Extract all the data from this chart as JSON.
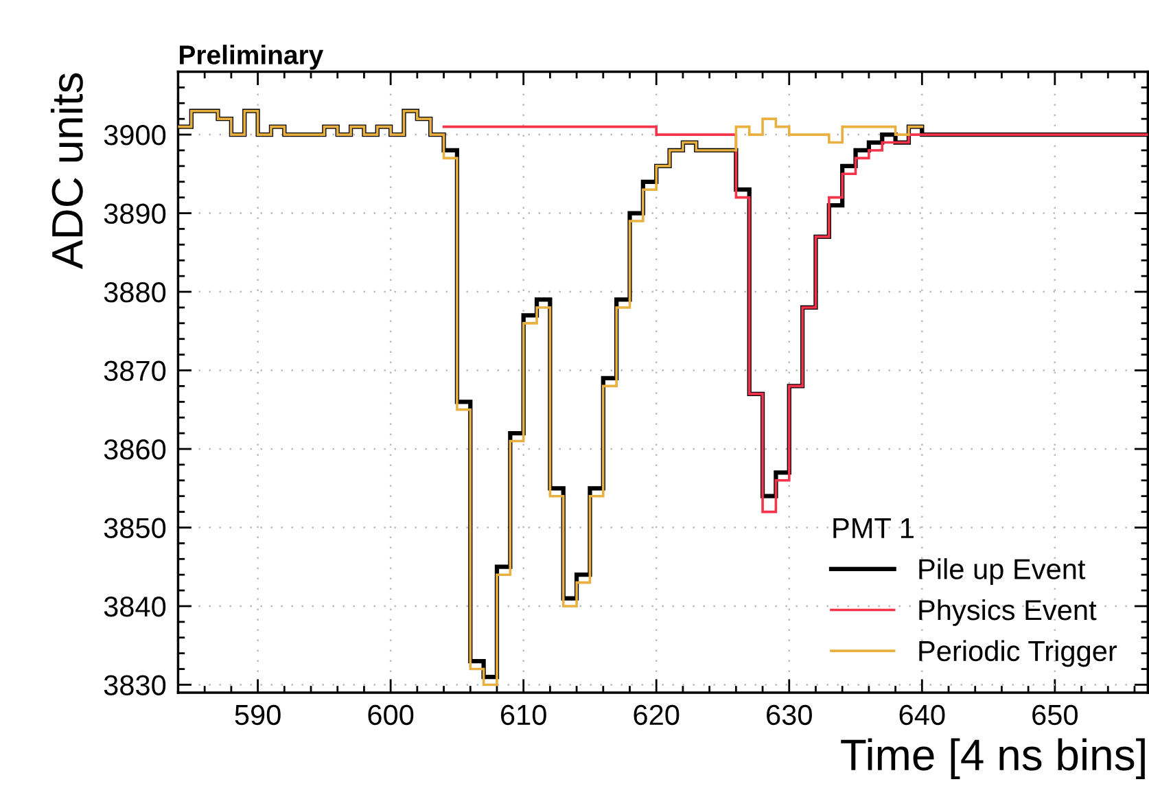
{
  "chart_data": {
    "type": "step",
    "title": "Preliminary",
    "xlabel": "Time [4 ns bins]",
    "ylabel": "ADC units",
    "legend_title": "PMT 1",
    "xlim": [
      584,
      657
    ],
    "ylim": [
      3829,
      3908
    ],
    "xticks": [
      590,
      600,
      610,
      620,
      630,
      640,
      650
    ],
    "yticks": [
      3830,
      3840,
      3850,
      3860,
      3870,
      3880,
      3890,
      3900
    ],
    "grid": true,
    "legend": "bottom right",
    "line_style": "solid",
    "marker": "none",
    "series": [
      {
        "name": "Pile up Event",
        "color": "#000000",
        "x": [
          584,
          585,
          586,
          587,
          588,
          589,
          590,
          591,
          592,
          593,
          594,
          595,
          596,
          597,
          598,
          599,
          600,
          601,
          602,
          603,
          604,
          605,
          606,
          607,
          608,
          609,
          610,
          611,
          612,
          613,
          614,
          615,
          616,
          617,
          618,
          619,
          620,
          621,
          622,
          623,
          624,
          625,
          626,
          627,
          628,
          629,
          630,
          631,
          632,
          633,
          634,
          635,
          636,
          637,
          638,
          639,
          640,
          641,
          642,
          643,
          644,
          645,
          646,
          647,
          648,
          649,
          650,
          651,
          652,
          653,
          654,
          655,
          656,
          657
        ],
        "values": [
          3901,
          3903,
          3903,
          3902,
          3900,
          3903,
          3900,
          3901,
          3900,
          3900,
          3900,
          3901,
          3900,
          3901,
          3900,
          3901,
          3900,
          3903,
          3902,
          3900,
          3898,
          3866,
          3833,
          3831,
          3845,
          3862,
          3877,
          3879,
          3855,
          3841,
          3844,
          3855,
          3869,
          3879,
          3890,
          3894,
          3896,
          3898,
          3899,
          3898,
          3898,
          3898,
          3893,
          3867,
          3854,
          3857,
          3868,
          3878,
          3887,
          3891,
          3896,
          3898,
          3899,
          3900,
          3899,
          3901,
          3900,
          3900,
          3900,
          3900,
          3900,
          3900,
          3900,
          3900,
          3900,
          3900,
          3900,
          3900,
          3900,
          3900,
          3900,
          3900,
          3900,
          3900
        ]
      },
      {
        "name": "Physics Event",
        "color": "#f5334a",
        "x": [
          604,
          605,
          606,
          607,
          608,
          609,
          610,
          611,
          612,
          613,
          614,
          615,
          616,
          617,
          618,
          619,
          620,
          621,
          622,
          623,
          624,
          625,
          626,
          627,
          628,
          629,
          630,
          631,
          632,
          633,
          634,
          635,
          636,
          637,
          638,
          639,
          640,
          641,
          642,
          643,
          644,
          645,
          646,
          647,
          648,
          649,
          650,
          651,
          652,
          653,
          654,
          655,
          656,
          657
        ],
        "values": [
          3901,
          3901,
          3901,
          3901,
          3901,
          3901,
          3901,
          3901,
          3901,
          3901,
          3901,
          3901,
          3901,
          3901,
          3901,
          3901,
          3900,
          3900,
          3900,
          3900,
          3900,
          3900,
          3892,
          3867,
          3852,
          3856,
          3868,
          3878,
          3887,
          3892,
          3895,
          3897,
          3898,
          3899,
          3899,
          3900,
          3900,
          3900,
          3900,
          3900,
          3900,
          3900,
          3900,
          3900,
          3900,
          3900,
          3900,
          3900,
          3900,
          3900,
          3900,
          3900,
          3900,
          3900
        ]
      },
      {
        "name": "Periodic Trigger",
        "color": "#e8b040",
        "x": [
          584,
          585,
          586,
          587,
          588,
          589,
          590,
          591,
          592,
          593,
          594,
          595,
          596,
          597,
          598,
          599,
          600,
          601,
          602,
          603,
          604,
          605,
          606,
          607,
          608,
          609,
          610,
          611,
          612,
          613,
          614,
          615,
          616,
          617,
          618,
          619,
          620,
          621,
          622,
          623,
          624,
          625,
          626,
          627,
          628,
          629,
          630,
          631,
          632,
          633,
          634,
          635,
          636,
          637,
          638,
          639,
          640
        ],
        "values": [
          3901,
          3903,
          3903,
          3902,
          3900,
          3903,
          3900,
          3901,
          3900,
          3900,
          3900,
          3901,
          3900,
          3901,
          3900,
          3901,
          3900,
          3903,
          3902,
          3900,
          3897,
          3865,
          3832,
          3830,
          3844,
          3861,
          3876,
          3878,
          3854,
          3840,
          3843,
          3854,
          3868,
          3878,
          3889,
          3893,
          3896,
          3898,
          3899,
          3898,
          3898,
          3898,
          3901,
          3900,
          3902,
          3901,
          3900,
          3900,
          3900,
          3899,
          3901,
          3901,
          3901,
          3901,
          3900,
          3901,
          3901
        ]
      }
    ]
  }
}
